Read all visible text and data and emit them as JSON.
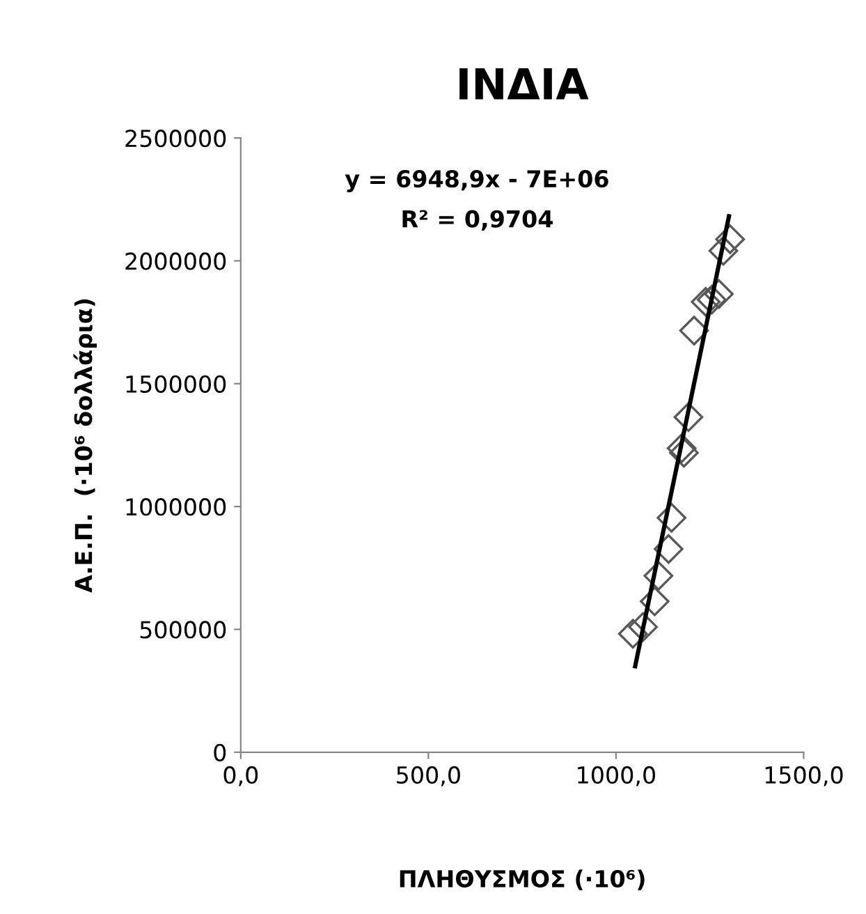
{
  "chart_data": {
    "type": "scatter",
    "title": "ΙΝΔΙΑ",
    "xlabel": "ΠΛΗΘΥΣΜΟΣ (·10⁶)",
    "ylabel": "Α.Ε.Π.  (·10⁶ δολλάρια)",
    "annotations": [
      "y = 6948,9x - 7E+06",
      "R² = 0,9704"
    ],
    "xlim": [
      0,
      1500
    ],
    "xticks": [
      {
        "value": 0,
        "label": "0,0"
      },
      {
        "value": 500,
        "label": "500,0"
      },
      {
        "value": 1000,
        "label": "1000,0"
      },
      {
        "value": 1500,
        "label": "1500,0"
      }
    ],
    "ylim": [
      0,
      2500000
    ],
    "yticks": [
      0,
      500000,
      1000000,
      1500000,
      2000000,
      2500000
    ],
    "grid": false,
    "legend": false,
    "series": [
      {
        "marker": "diamond",
        "color": "#595959",
        "x": [
          1045,
          1072,
          1103,
          1113,
          1140,
          1148,
          1175,
          1181,
          1193,
          1208,
          1239,
          1255,
          1274,
          1286,
          1304
        ],
        "values": [
          482000,
          510000,
          614000,
          718000,
          827000,
          954000,
          1237000,
          1219000,
          1364000,
          1716000,
          1833000,
          1842000,
          1865000,
          2041000,
          2088000
        ]
      },
      {
        "type": "line",
        "marker": "none",
        "line_style": "solid",
        "color": "#000000",
        "x": [
          1051,
          1301
        ],
        "values": [
          350000,
          2182000
        ]
      }
    ]
  }
}
